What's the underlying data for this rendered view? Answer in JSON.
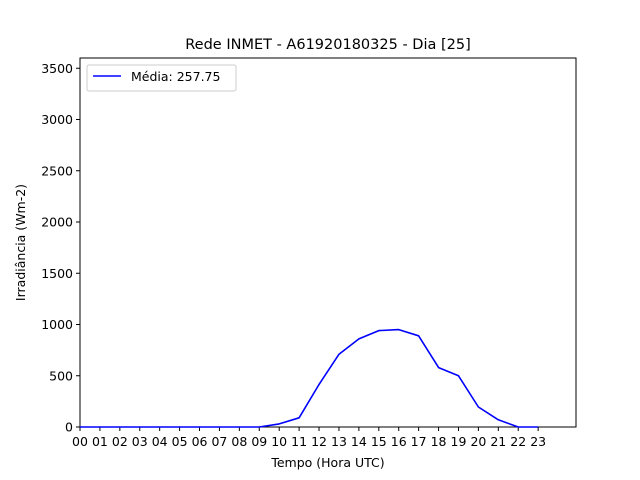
{
  "chart_data": {
    "type": "line",
    "title": "Rede INMET - A61920180325 - Dia [25]",
    "xlabel": "Tempo (Hora UTC)",
    "ylabel": "Irradiância (Wm-2)",
    "xlim": [
      0,
      24.9
    ],
    "ylim": [
      0,
      3600
    ],
    "x_tick_labels": [
      "00",
      "01",
      "02",
      "03",
      "04",
      "05",
      "06",
      "07",
      "08",
      "09",
      "10",
      "11",
      "12",
      "13",
      "14",
      "15",
      "16",
      "17",
      "18",
      "19",
      "20",
      "21",
      "22",
      "23"
    ],
    "y_ticks": [
      0,
      500,
      1000,
      1500,
      2000,
      2500,
      3000,
      3500
    ],
    "grid": false,
    "legend_position": "upper-left",
    "series": [
      {
        "name": "Média: 257.75",
        "color": "#0000ff",
        "x": [
          0,
          1,
          2,
          3,
          4,
          5,
          6,
          7,
          8,
          9,
          10,
          11,
          12,
          13,
          14,
          15,
          16,
          17,
          18,
          19,
          20,
          21,
          22,
          23
        ],
        "values": [
          0,
          0,
          0,
          0,
          0,
          0,
          0,
          0,
          0,
          0,
          30,
          90,
          415,
          710,
          860,
          940,
          950,
          890,
          580,
          500,
          195,
          70,
          0,
          0
        ]
      }
    ]
  }
}
